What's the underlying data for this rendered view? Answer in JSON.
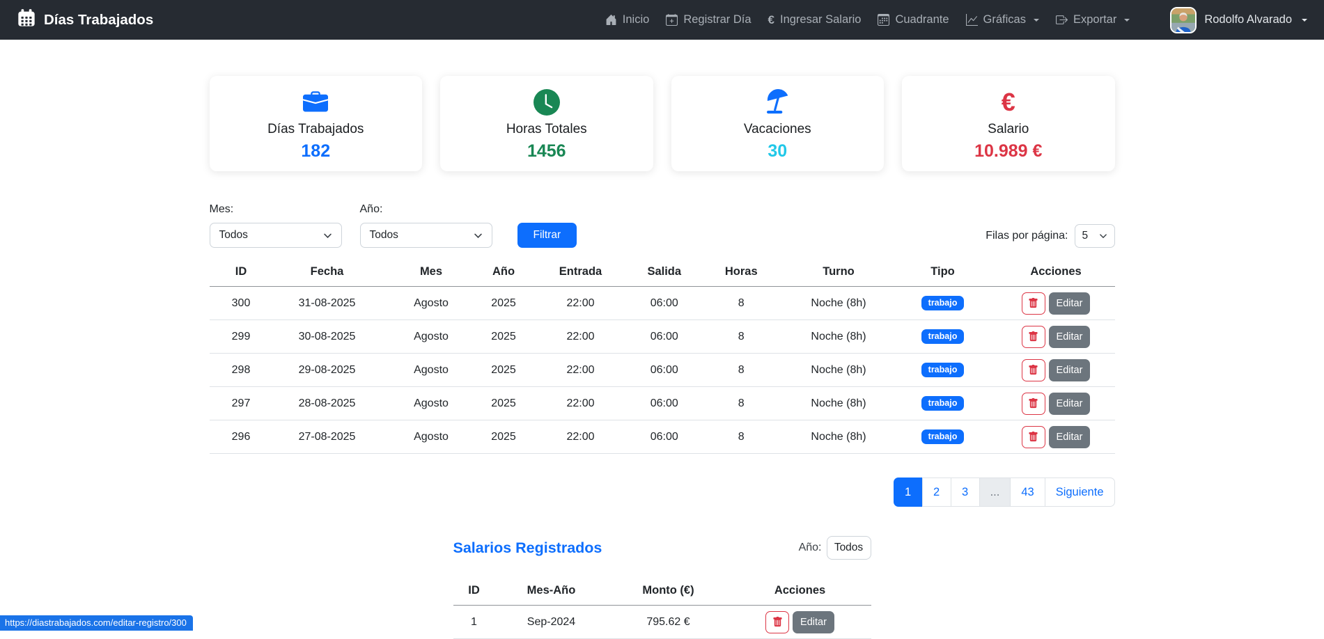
{
  "navbar": {
    "brand": "Días Trabajados",
    "items": [
      {
        "label": "Inicio",
        "icon": "home-icon"
      },
      {
        "label": "Registrar Día",
        "icon": "calendar-plus-icon"
      },
      {
        "label": "Ingresar Salario",
        "icon": "euro-icon"
      },
      {
        "label": "Cuadrante",
        "icon": "calendar-grid-icon"
      },
      {
        "label": "Gráficas",
        "icon": "chart-icon",
        "has_dropdown": true
      },
      {
        "label": "Exportar",
        "icon": "export-icon",
        "has_dropdown": true
      }
    ],
    "user": {
      "name": "Rodolfo Alvarado"
    }
  },
  "stats": [
    {
      "label": "Días Trabajados",
      "value": "182",
      "icon": "briefcase-icon",
      "color": "#0d6efd"
    },
    {
      "label": "Horas Totales",
      "value": "1456",
      "icon": "clock-icon",
      "color": "#198754"
    },
    {
      "label": "Vacaciones",
      "value": "30",
      "icon": "beach-umbrella-icon",
      "color": "#21c8e8"
    },
    {
      "label": "Salario",
      "value": "10.989 €",
      "icon": "euro-icon",
      "color": "#dc3545"
    }
  ],
  "filters": {
    "mes_label": "Mes:",
    "mes_value": "Todos",
    "ano_label": "Año:",
    "ano_value": "Todos",
    "filter_button": "Filtrar",
    "rows_per_page_label": "Filas por página:",
    "rows_per_page_value": "5"
  },
  "records_table": {
    "headers": [
      "ID",
      "Fecha",
      "Mes",
      "Año",
      "Entrada",
      "Salida",
      "Horas",
      "Turno",
      "Tipo",
      "Acciones"
    ],
    "rows": [
      {
        "id": "300",
        "fecha": "31-08-2025",
        "mes": "Agosto",
        "ano": "2025",
        "entrada": "22:00",
        "salida": "06:00",
        "horas": "8",
        "turno": "Noche (8h)",
        "tipo": "trabajo"
      },
      {
        "id": "299",
        "fecha": "30-08-2025",
        "mes": "Agosto",
        "ano": "2025",
        "entrada": "22:00",
        "salida": "06:00",
        "horas": "8",
        "turno": "Noche (8h)",
        "tipo": "trabajo"
      },
      {
        "id": "298",
        "fecha": "29-08-2025",
        "mes": "Agosto",
        "ano": "2025",
        "entrada": "22:00",
        "salida": "06:00",
        "horas": "8",
        "turno": "Noche (8h)",
        "tipo": "trabajo"
      },
      {
        "id": "297",
        "fecha": "28-08-2025",
        "mes": "Agosto",
        "ano": "2025",
        "entrada": "22:00",
        "salida": "06:00",
        "horas": "8",
        "turno": "Noche (8h)",
        "tipo": "trabajo"
      },
      {
        "id": "296",
        "fecha": "27-08-2025",
        "mes": "Agosto",
        "ano": "2025",
        "entrada": "22:00",
        "salida": "06:00",
        "horas": "8",
        "turno": "Noche (8h)",
        "tipo": "trabajo"
      }
    ],
    "edit_label": "Editar"
  },
  "pagination": {
    "pages": [
      "1",
      "2",
      "3",
      "...",
      "43"
    ],
    "active": "1",
    "next_label": "Siguiente"
  },
  "salaries": {
    "title": "Salarios Registrados",
    "year_label": "Año:",
    "year_value": "Todos",
    "headers": [
      "ID",
      "Mes-Año",
      "Monto (€)",
      "Acciones"
    ],
    "rows": [
      {
        "id": "1",
        "mes_ano": "Sep-2024",
        "monto": "795.62 €"
      }
    ],
    "edit_label": "Editar"
  },
  "status_bar": {
    "url": "https://diastrabajados.com/editar-registro/300"
  },
  "colors": {
    "primary": "#0d6efd",
    "success": "#198754",
    "info": "#21c8e8",
    "danger": "#dc3545",
    "secondary": "#6c757d",
    "navbar_bg": "#262b32",
    "status_bubble_bg": "#1a73e8"
  }
}
